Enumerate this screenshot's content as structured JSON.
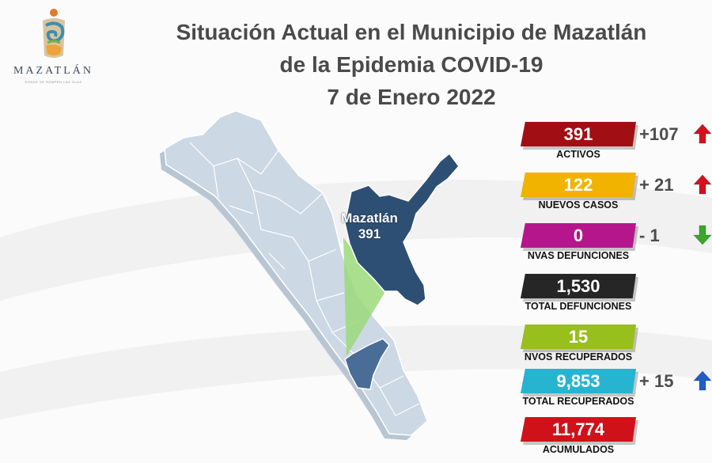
{
  "header": {
    "title_line1": "Situación Actual en el Municipio de Mazatlán",
    "title_line2": "de la Epidemia COVID-19",
    "date": "7 de Enero 2022"
  },
  "logo": {
    "name": "MAZATLÁN",
    "tagline": "DONDE SE ROMPEN LAS OLAS"
  },
  "map": {
    "municipality": "Mazatlán",
    "value": "391",
    "colors": {
      "state": "#ccd8e3",
      "highlight": "#2e4f74",
      "green": "#9bd97a"
    }
  },
  "stats": [
    {
      "value": "391",
      "label": "ACTIVOS",
      "color": "#a10f14",
      "delta": "+107",
      "trend": "up"
    },
    {
      "value": "122",
      "label": "NUEVOS CASOS",
      "color": "#f2b300",
      "delta": "+  21",
      "trend": "up"
    },
    {
      "value": "0",
      "label": "NVAS DEFUNCIONES",
      "color": "#b5168c",
      "delta": "-    1",
      "trend": "down"
    },
    {
      "value": "1,530",
      "label": "TOTAL DEFUNCIONES",
      "color": "#262626",
      "delta": "",
      "trend": ""
    },
    {
      "value": "15",
      "label": "NVOS RECUPERADOS",
      "color": "#99bf1c",
      "delta": "",
      "trend": ""
    },
    {
      "value": "9,853",
      "label": "TOTAL RECUPERADOS",
      "color": "#27b4d1",
      "delta": "+  15",
      "trend": "up"
    },
    {
      "value": "11,774",
      "label": "ACUMULADOS",
      "color": "#cf121a",
      "delta": "",
      "trend": ""
    }
  ],
  "colors": {
    "up_arrow_red": "#d6101c",
    "up_arrow_blue": "#1d5fc6",
    "down_arrow": "#3ba629"
  }
}
